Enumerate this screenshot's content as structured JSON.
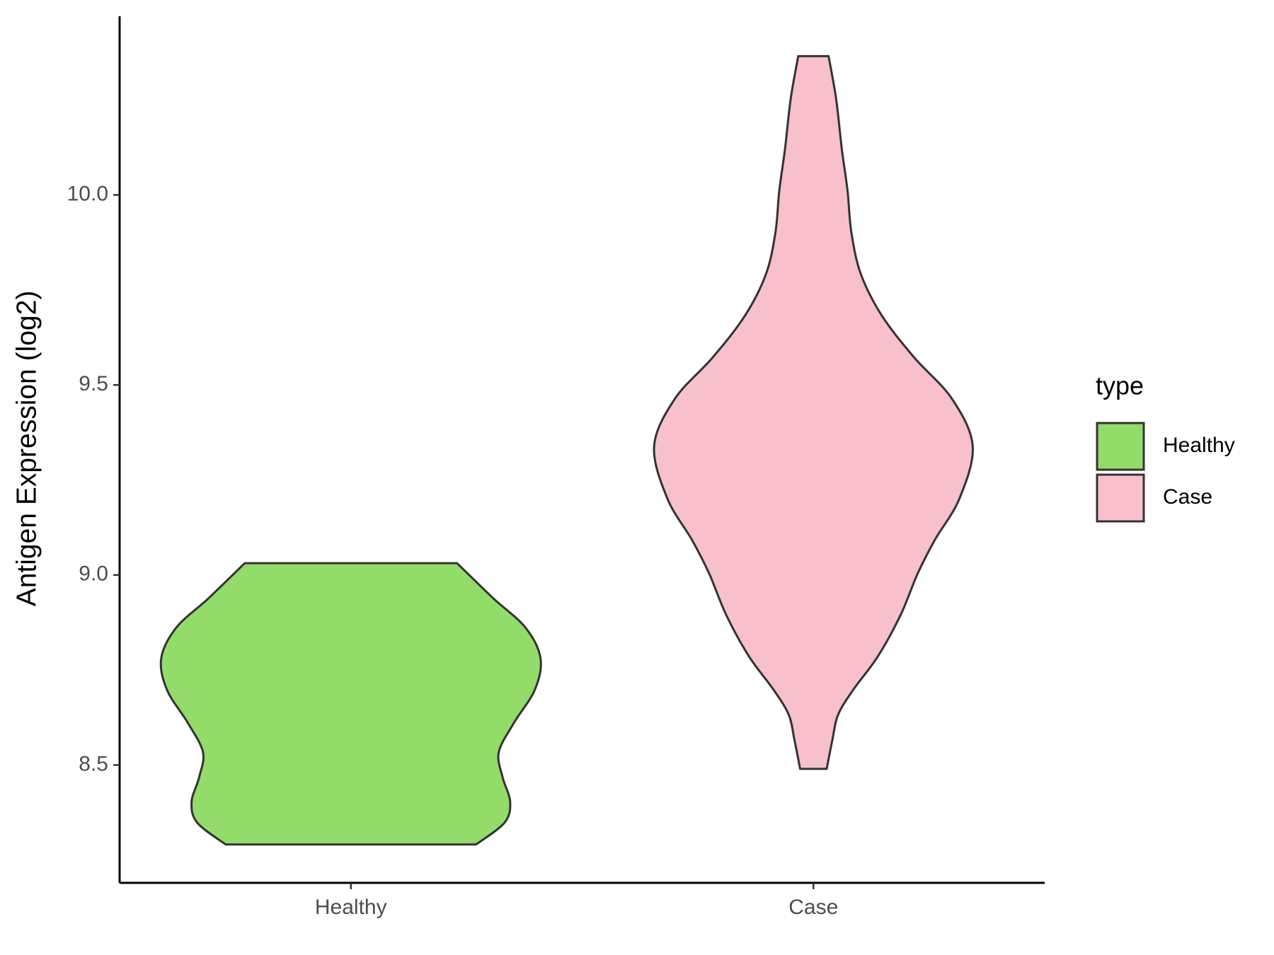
{
  "chart_data": {
    "type": "violin",
    "y_label": "Antigen Expression (log2)",
    "legend_title": "type",
    "categories": [
      "Healthy",
      "Case"
    ],
    "series": [
      {
        "name": "Healthy",
        "color": "#93dc6a",
        "y": [
          8.291,
          8.348,
          8.403,
          8.468,
          8.534,
          8.611,
          8.698,
          8.781,
          8.862,
          8.939,
          9.031
        ],
        "density": [
          0.66,
          0.81,
          0.84,
          0.8,
          0.78,
          0.86,
          0.97,
          1.0,
          0.92,
          0.75,
          0.56
        ]
      },
      {
        "name": "Case",
        "color": "#f7c0cb",
        "y": [
          8.49,
          8.566,
          8.632,
          8.698,
          8.786,
          8.895,
          9.004,
          9.092,
          9.201,
          9.339,
          9.464,
          9.573,
          9.683,
          9.792,
          9.902,
          10.011,
          10.12,
          10.252,
          10.365
        ],
        "density": [
          0.07,
          0.1,
          0.13,
          0.21,
          0.34,
          0.46,
          0.55,
          0.64,
          0.77,
          0.84,
          0.73,
          0.53,
          0.36,
          0.25,
          0.2,
          0.18,
          0.15,
          0.12,
          0.08
        ]
      }
    ],
    "ylim": [
      8.19,
      10.47
    ],
    "yticks": [
      8.5,
      {
        "value": 9,
        "label": "9.0"
      },
      9.5,
      {
        "value": 10,
        "label": "10.0"
      }
    ],
    "legend_position": "right"
  }
}
